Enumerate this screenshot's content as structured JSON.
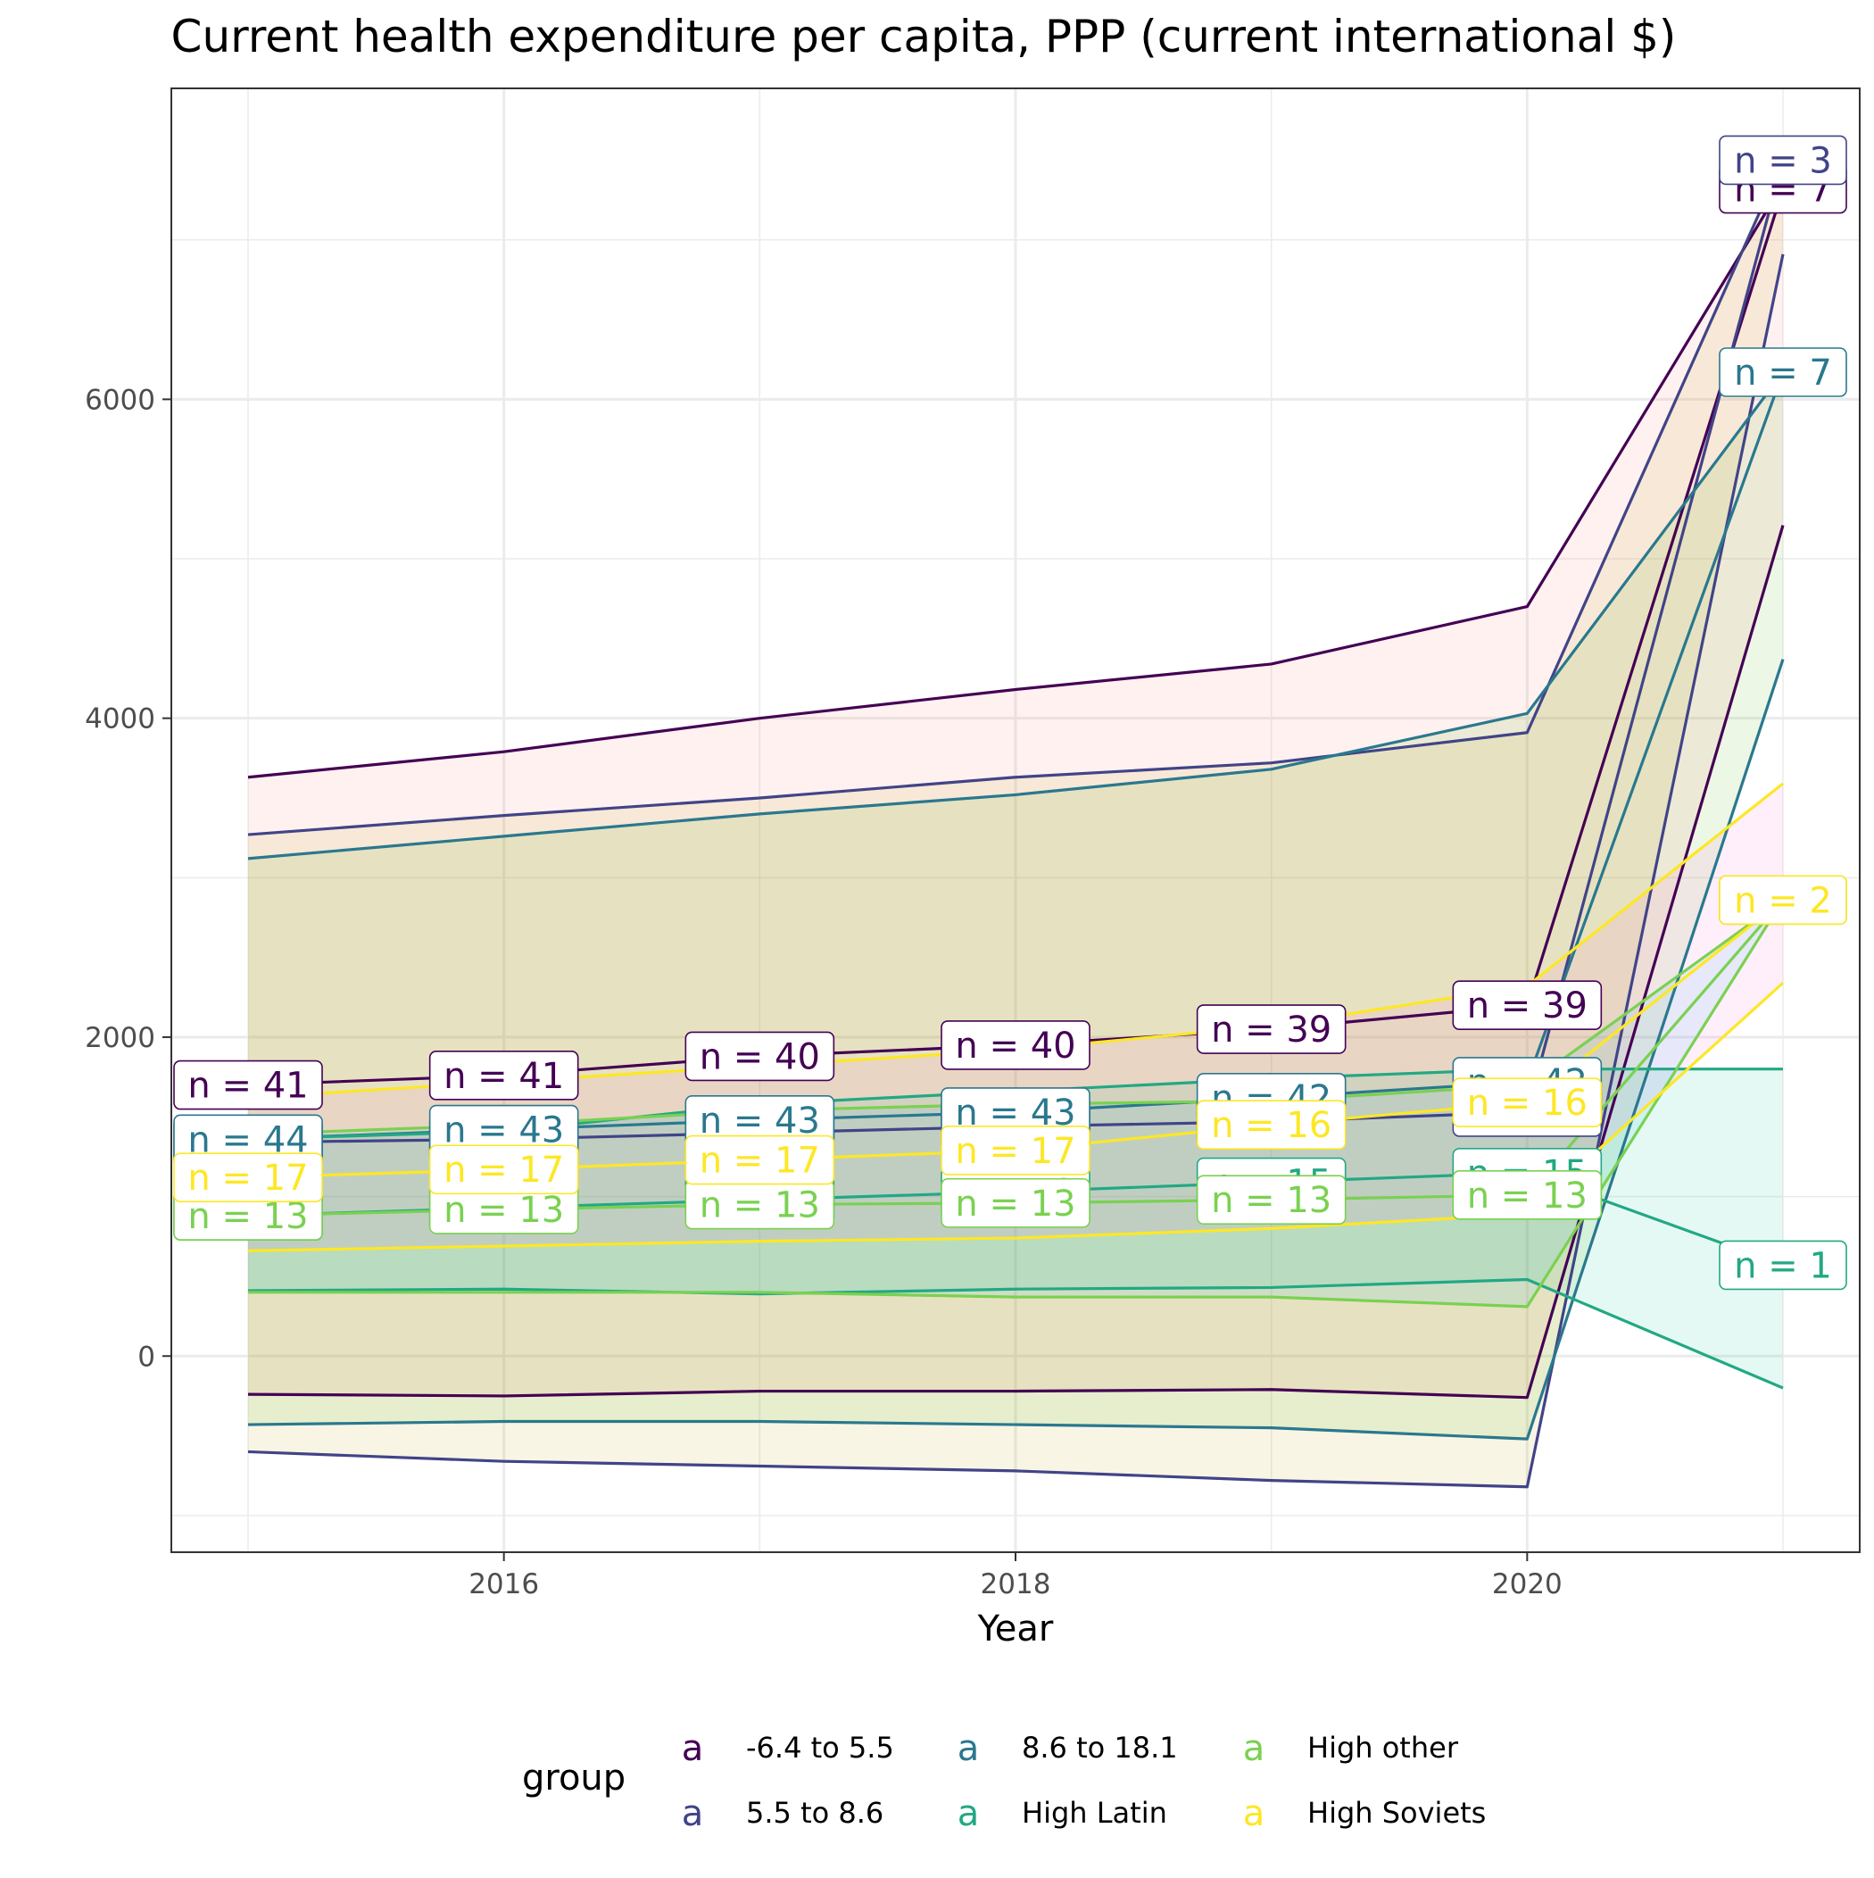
{
  "chart_data": {
    "type": "line",
    "title": "Current health expenditure per capita, PPP (current international $)",
    "xlabel": "Year",
    "ylabel": "",
    "x": [
      2015,
      2016,
      2017,
      2018,
      2019,
      2020,
      2021
    ],
    "x_ticks": [
      2016,
      2018,
      2020
    ],
    "x_tick_labels": [
      "2016",
      "2018",
      "2020"
    ],
    "y_ticks": [
      0,
      2000,
      4000,
      6000
    ],
    "y_tick_labels": [
      "0",
      "2000",
      "4000",
      "6000"
    ],
    "xlim": [
      2014.7,
      2021.3
    ],
    "ylim": [
      -1230,
      7950
    ],
    "grid": true,
    "legend": {
      "title": "group",
      "position": "bottom",
      "key_glyph": "a",
      "entries": [
        {
          "label": "-6.4 to 5.5",
          "color": "#440154"
        },
        {
          "label": "5.5 to 8.6",
          "color": "#414487"
        },
        {
          "label": "8.6 to 18.1",
          "color": "#2A788E"
        },
        {
          "label": "High Latin",
          "color": "#22A884"
        },
        {
          "label": "High other",
          "color": "#7AD151"
        },
        {
          "label": "High Soviets",
          "color": "#FDE725"
        }
      ]
    },
    "series": [
      {
        "name": "-6.4 to 5.5",
        "color": "#440154",
        "ribbon_color": "#F8766D",
        "mean": [
          1700,
          1760,
          1880,
          1950,
          2050,
          2200,
          7320
        ],
        "upper": [
          3630,
          3790,
          4000,
          4180,
          4340,
          4700,
          7350
        ],
        "lower": [
          -240,
          -250,
          -220,
          -220,
          -210,
          -260,
          5210
        ],
        "labels": [
          "n = 41",
          "n = 41",
          "n = 40",
          "n = 40",
          "n = 39",
          "n = 39",
          "n = 7"
        ]
      },
      {
        "name": "5.5 to 8.6",
        "color": "#414487",
        "ribbon_color": "#C49A00",
        "mean": [
          1340,
          1360,
          1400,
          1440,
          1470,
          1530,
          7500
        ],
        "upper": [
          3270,
          3390,
          3500,
          3630,
          3720,
          3910,
          7500
        ],
        "lower": [
          -600,
          -660,
          -690,
          -720,
          -780,
          -820,
          6910
        ],
        "labels": [
          "n = 44",
          "n = 43",
          "n = 43",
          "n = 43",
          "n = 42",
          "n = 42",
          "n = 3"
        ]
      },
      {
        "name": "8.6 to 18.1",
        "color": "#2A788E",
        "ribbon_color": "#53B400",
        "mean": [
          1360,
          1420,
          1480,
          1530,
          1620,
          1720,
          6170
        ],
        "upper": [
          3120,
          3260,
          3400,
          3520,
          3680,
          4030,
          6170
        ],
        "lower": [
          -430,
          -410,
          -410,
          -430,
          -450,
          -520,
          4370
        ],
        "labels": [
          "n = 44",
          "n = 43",
          "n = 43",
          "n = 43",
          "n = 42",
          "n = 42",
          "n = 7"
        ]
      },
      {
        "name": "High Latin",
        "color": "#22A884",
        "ribbon_color": "#00C094",
        "mean": [
          880,
          930,
          980,
          1030,
          1090,
          1150,
          570
        ],
        "upper": [
          1360,
          1410,
          1580,
          1660,
          1740,
          1800,
          1800
        ],
        "lower": [
          410,
          420,
          390,
          420,
          430,
          480,
          -200
        ],
        "labels": [
          "n = 13",
          "n = 13",
          "n = 13",
          "n = 13",
          "n = 15",
          "n = 15",
          "n = 1"
        ]
      },
      {
        "name": "High other",
        "color": "#7AD151",
        "ribbon_color": "#00B6EB",
        "mean": [
          880,
          920,
          950,
          960,
          980,
          1010,
          2860
        ],
        "upper": [
          1390,
          1450,
          1540,
          1580,
          1600,
          1700,
          2860
        ],
        "lower": [
          400,
          400,
          400,
          370,
          370,
          310,
          2860
        ],
        "labels": [
          "n = 13",
          "n = 13",
          "n = 13",
          "n = 13",
          "n = 13",
          "n = 13",
          "n = 2"
        ]
      },
      {
        "name": "High Soviets",
        "color": "#FDE725",
        "ribbon_color": "#FB61D7",
        "mean": [
          1120,
          1170,
          1230,
          1290,
          1450,
          1590,
          2860
        ],
        "upper": [
          1620,
          1720,
          1820,
          1920,
          2070,
          2320,
          3590
        ],
        "lower": [
          660,
          690,
          720,
          740,
          800,
          890,
          2340
        ],
        "labels": [
          "n = 17",
          "n = 17",
          "n = 17",
          "n = 17",
          "n = 16",
          "n = 16",
          "n = 2"
        ]
      }
    ]
  }
}
